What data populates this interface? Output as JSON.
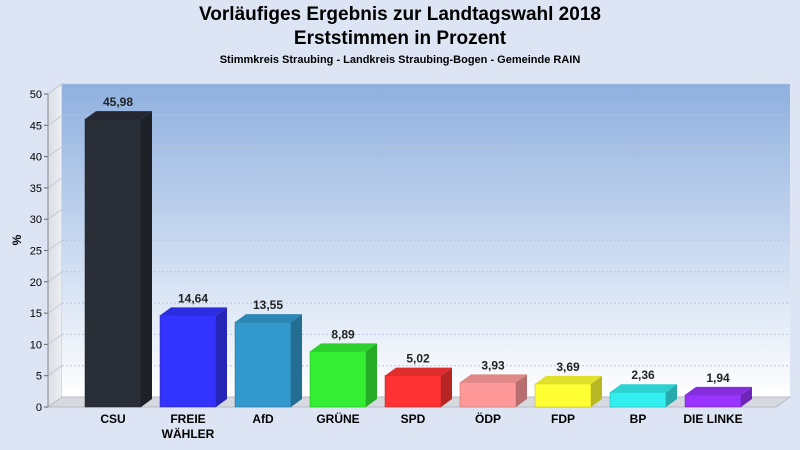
{
  "header": {
    "title": "Vorläufiges Ergebnis zur Landtagswahl 2018",
    "subtitle": "Erststimmen in Prozent",
    "region": "Stimmkreis Straubing - Landkreis Straubing-Bogen - Gemeinde RAIN"
  },
  "chart_data": {
    "type": "bar",
    "title": "Vorläufiges Ergebnis zur Landtagswahl 2018",
    "subtitle": "Erststimmen in Prozent",
    "xlabel": "",
    "ylabel": "%",
    "ylim": [
      0,
      50
    ],
    "yticks": [
      0,
      5,
      10,
      15,
      20,
      25,
      30,
      35,
      40,
      45,
      50
    ],
    "grid": true,
    "categories": [
      "CSU",
      "FREIE WÄHLER",
      "AfD",
      "GRÜNE",
      "SPD",
      "ÖDP",
      "FDP",
      "BP",
      "DIE LINKE"
    ],
    "category_lines": [
      [
        "CSU"
      ],
      [
        "FREIE",
        "WÄHLER"
      ],
      [
        "AfD"
      ],
      [
        "GRÜNE"
      ],
      [
        "SPD"
      ],
      [
        "ÖDP"
      ],
      [
        "FDP"
      ],
      [
        "BP"
      ],
      [
        "DIE LINKE"
      ]
    ],
    "values": [
      45.98,
      14.64,
      13.55,
      8.89,
      5.02,
      3.93,
      3.69,
      2.36,
      1.94
    ],
    "value_labels": [
      "45,98",
      "14,64",
      "13,55",
      "8,89",
      "5,02",
      "3,93",
      "3,69",
      "2,36",
      "1,94"
    ],
    "colors": [
      "#2a2e36",
      "#3333ff",
      "#3399cc",
      "#33ee33",
      "#ff3333",
      "#ff9999",
      "#ffff33",
      "#33eeee",
      "#9933ff"
    ]
  }
}
